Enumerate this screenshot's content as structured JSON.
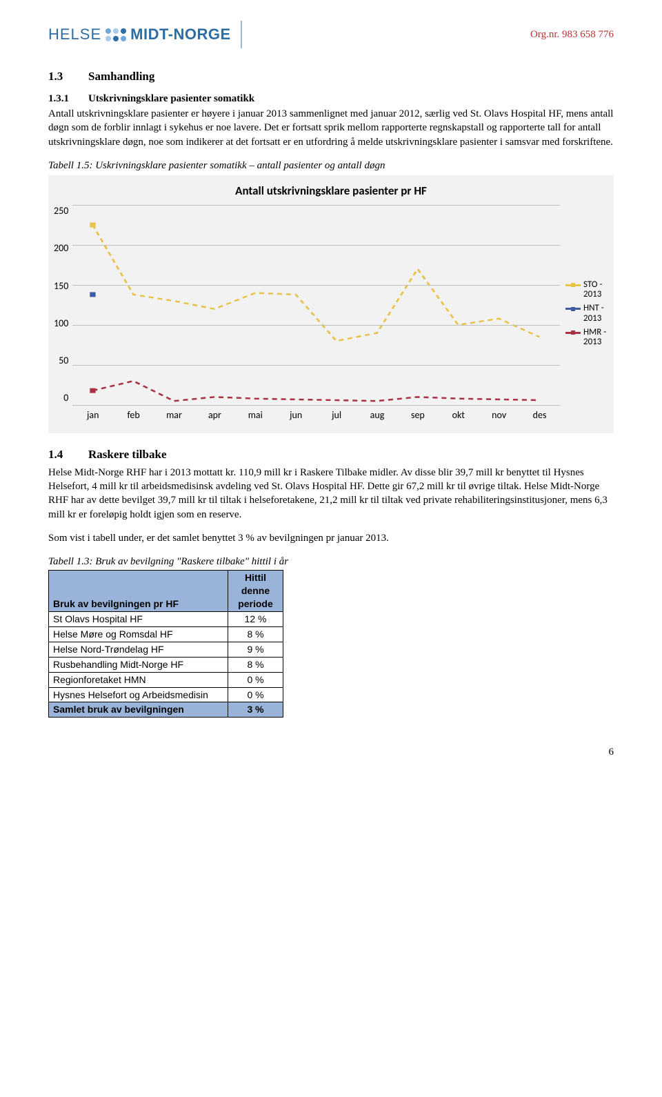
{
  "header": {
    "logo_left": "HELSE",
    "logo_right": "MIDT-NORGE",
    "logo_colors": [
      "#6fa9dd",
      "#a7cbea",
      "#2e6ca4",
      "#a7cbea",
      "#2e6ca4",
      "#6fa9dd"
    ],
    "orgnr": "Org.nr. 983 658 776"
  },
  "section13": {
    "num": "1.3",
    "title": "Samhandling"
  },
  "section131": {
    "num": "1.3.1",
    "title": "Utskrivningsklare pasienter somatikk",
    "body": "Antall utskrivningsklare pasienter er høyere i januar 2013 sammenlignet med januar 2012, særlig ved St. Olavs Hospital HF, mens antall døgn som de forblir innlagt i sykehus er noe lavere. Det er fortsatt sprik mellom rapporterte regnskapstall og rapporterte tall for antall utskrivningsklare døgn, noe som indikerer at det fortsatt er en utfordring å melde utskrivningsklare pasienter i samsvar med forskriftene."
  },
  "tabell15_caption": "Tabell 1.5: Uskrivningsklare pasienter somatikk – antall pasienter og antall døgn",
  "chart": {
    "title": "Antall utskrivningsklare pasienter pr HF",
    "type": "line",
    "background_color": "#f2f2f2",
    "grid_color": "#bfbfbf",
    "ylim": [
      0,
      250
    ],
    "ytick_step": 50,
    "yticks": [
      "250",
      "200",
      "150",
      "100",
      "50",
      "0"
    ],
    "categories": [
      "jan",
      "feb",
      "mar",
      "apr",
      "mai",
      "jun",
      "jul",
      "aug",
      "sep",
      "okt",
      "nov",
      "des"
    ],
    "series": [
      {
        "name": "STO - 2013",
        "color": "#e8c34a",
        "marker": "square",
        "marker_size": 7,
        "line_width": 2.5,
        "dash": "6 5",
        "values": [
          225,
          138,
          130,
          120,
          140,
          138,
          80,
          90,
          170,
          100,
          108,
          85
        ],
        "point_at_jan_only": true
      },
      {
        "name": "HNT - 2013",
        "color": "#3b5ba5",
        "marker": "square",
        "marker_size": 7,
        "line_width": 2.5,
        "dash": "6 5",
        "values": [
          138
        ],
        "point_at_jan_only": true
      },
      {
        "name": "HMR - 2013",
        "color": "#a83244",
        "marker": "square",
        "marker_size": 7,
        "line_width": 2.5,
        "dash": "6 5",
        "values": [
          18,
          30,
          5,
          10,
          8,
          7,
          6,
          5,
          10,
          8,
          7,
          6
        ],
        "point_at_jan_only": true
      }
    ],
    "legend_position": "right",
    "title_fontsize": 17,
    "label_fontsize": 14
  },
  "section14": {
    "num": "1.4",
    "title": "Raskere tilbake",
    "body1": "Helse Midt-Norge RHF har i 2013 mottatt kr. 110,9 mill kr i Raskere Tilbake midler. Av disse blir 39,7 mill kr benyttet til Hysnes Helsefort, 4 mill kr til arbeidsmedisinsk avdeling ved St. Olavs Hospital HF. Dette gir 67,2 mill kr til øvrige tiltak. Helse Midt-Norge RHF har av dette bevilget 39,7 mill kr til tiltak i helseforetakene, 21,2 mill kr til tiltak ved private rehabiliteringsinstitusjoner, mens 6,3 mill kr er foreløpig holdt igjen som en reserve.",
    "body2": "Som vist i tabell under, er det samlet benyttet 3 % av bevilgningen pr januar 2013."
  },
  "tabell13_caption": "Tabell 1.3: Bruk av bevilgning \"Raskere tilbake\" hittil i år",
  "table": {
    "header_bg": "#99b3d9",
    "col1_header": "Bruk av bevilgningen pr HF",
    "col2_header": "Hittil denne periode",
    "rows": [
      {
        "label": "St Olavs Hospital HF",
        "value": "12 %"
      },
      {
        "label": "Helse Møre og Romsdal HF",
        "value": "8 %"
      },
      {
        "label": "Helse Nord-Trøndelag HF",
        "value": "9 %"
      },
      {
        "label": "Rusbehandling Midt-Norge HF",
        "value": "8 %"
      },
      {
        "label": "Regionforetaket HMN",
        "value": "0 %"
      },
      {
        "label": "Hysnes Helsefort og Arbeidsmedisin",
        "value": "0 %"
      }
    ],
    "total": {
      "label": "Samlet bruk av bevilgningen",
      "value": "3 %"
    }
  },
  "page_number": "6"
}
